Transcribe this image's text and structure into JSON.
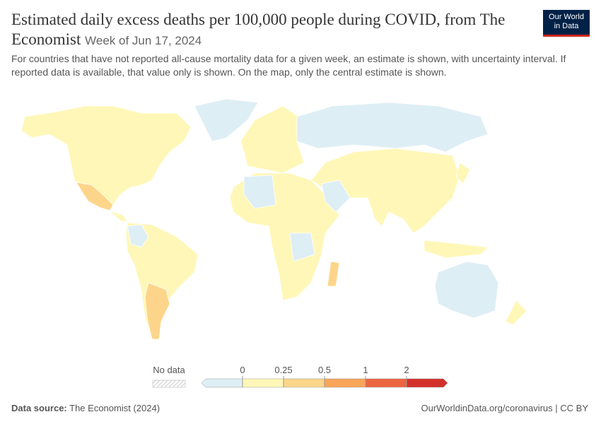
{
  "header": {
    "title": "Estimated daily excess deaths per 100,000 people during COVID, from The Economist",
    "date": "Week of Jun 17, 2024",
    "subtitle": "For countries that have not reported all-cause mortality data for a given week, an estimate is shown, with uncertainty interval. If reported data is available, that value only is shown. On the map, only the central estimate is shown.",
    "logo": [
      "Our World",
      "in Data"
    ]
  },
  "legend": {
    "no_data": "No data",
    "ticks": [
      0,
      0.25,
      0.5,
      1,
      2
    ],
    "colors": [
      "#deeef5",
      "#fff7b8",
      "#fdd58a",
      "#f8a55a",
      "#ec6541",
      "#d3302a"
    ]
  },
  "footer": {
    "source_label": "Data source:",
    "source": "The Economist (2024)",
    "url": "OurWorldinData.org/coronavirus | CC BY"
  }
}
